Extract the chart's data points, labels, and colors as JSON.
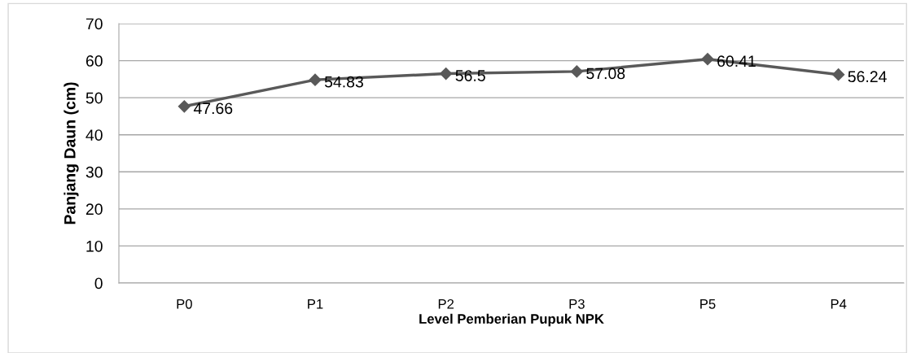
{
  "chart_data": {
    "type": "line",
    "xlabel": "Level Pemberian Pupuk NPK",
    "ylabel": "Panjang Daun (cm)",
    "categories": [
      "P0",
      "P1",
      "P2",
      "P3",
      "P5",
      "P4"
    ],
    "series": [
      {
        "color": "#595959",
        "values": [
          47.66,
          54.83,
          56.5,
          57.08,
          60.41,
          56.24
        ]
      }
    ],
    "ylim": [
      0,
      70
    ],
    "yticks": [
      0,
      10,
      20,
      30,
      40,
      50,
      60,
      70
    ],
    "grid": "y",
    "marker": "diamond",
    "line_style": "solid",
    "data_labels": true,
    "legend": false
  }
}
